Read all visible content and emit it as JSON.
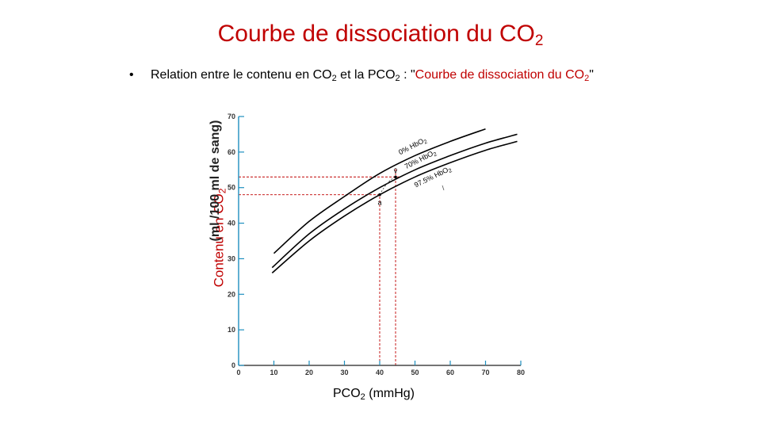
{
  "slide": {
    "title_main": "Courbe de dissociation du CO",
    "title_sub": "2",
    "bullet": {
      "marker": "•",
      "text_1": "Relation entre le contenu en CO",
      "sub_1": "2",
      "text_2": " et la PCO",
      "sub_2": "2",
      "text_3": " : \"",
      "red_1": "Courbe de dissociation du CO",
      "red_sub": "2",
      "text_4": "\""
    }
  },
  "chart_data": {
    "type": "line",
    "ylabel_main": "Contenu en CO",
    "ylabel_sub": "2",
    "ylabel_units": "(ml /100 ml de sang)",
    "xlabel_main": "PCO",
    "xlabel_sub": "2",
    "xlabel_units": " (mmHg)",
    "xlim": [
      0,
      80
    ],
    "ylim": [
      0,
      70
    ],
    "xticks": [
      0,
      10,
      20,
      30,
      40,
      50,
      60,
      70,
      80
    ],
    "yticks": [
      0,
      10,
      20,
      30,
      40,
      50,
      60,
      70
    ],
    "series": [
      {
        "name": "0% HbO2",
        "label_text": "0% HbO",
        "label_sub": "2",
        "x": [
          10,
          20,
          30,
          40,
          50,
          60,
          70
        ],
        "y": [
          31.5,
          40.5,
          47.5,
          54,
          59,
          63,
          66.5
        ]
      },
      {
        "name": "70% HbO2",
        "label_text": "70% HbO",
        "label_sub": "2",
        "x": [
          9.5,
          20,
          30,
          40,
          50,
          60,
          70,
          79
        ],
        "y": [
          27.5,
          37,
          44,
          50,
          55,
          59,
          62.5,
          65
        ]
      },
      {
        "name": "97.5% HbO2",
        "label_text": "97.5% HbO",
        "label_sub": "2",
        "x": [
          9.5,
          20,
          30,
          40,
          50,
          60,
          70,
          79
        ],
        "y": [
          26,
          35,
          42,
          48,
          53,
          57,
          60.5,
          63
        ]
      }
    ],
    "points": [
      {
        "label": "a",
        "x": 40,
        "y": 48
      },
      {
        "label": "v̄",
        "x": 44.5,
        "y": 53
      }
    ],
    "reference_lines": {
      "color": "#c00000",
      "style": "dashed",
      "vertical_x": [
        40,
        44.5
      ],
      "horizontal_y": [
        48,
        53
      ]
    },
    "colors": {
      "axis_tick": "#1e8fbf",
      "curve": "#000000",
      "reference": "#c00000"
    }
  }
}
